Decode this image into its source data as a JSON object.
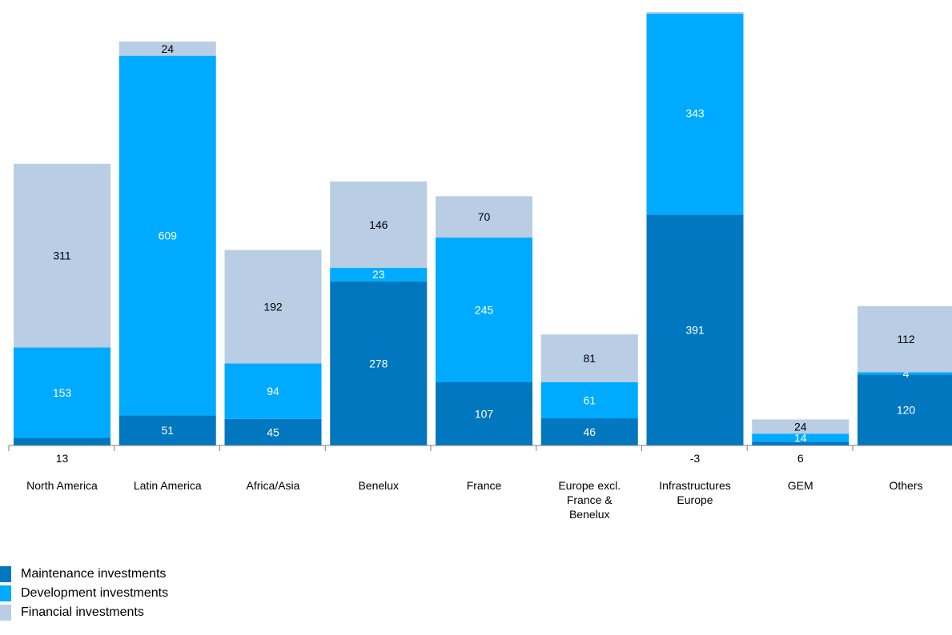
{
  "chart_data": {
    "type": "bar",
    "stacked": true,
    "categories": [
      "North America",
      "Latin America",
      "Africa/Asia",
      "Benelux",
      "France",
      "Europe excl. France & Benelux",
      "Infrastructures Europe",
      "GEM",
      "Others"
    ],
    "category_lines": [
      [
        "North America"
      ],
      [
        "Latin America"
      ],
      [
        "Africa/Asia"
      ],
      [
        "Benelux"
      ],
      [
        "France"
      ],
      [
        "Europe excl.",
        "France &",
        "Benelux"
      ],
      [
        "Infrastructures",
        "Europe"
      ],
      [
        "GEM"
      ],
      [
        "Others"
      ]
    ],
    "series": [
      {
        "name": "Maintenance investments",
        "color": "#0077bf",
        "label_color": "#ffffff",
        "values": [
          13,
          51,
          45,
          278,
          107,
          46,
          391,
          6,
          120
        ],
        "labels": [
          "13",
          "51",
          "45",
          "278",
          "107",
          "46",
          "391",
          "6",
          "120"
        ]
      },
      {
        "name": "Development investments",
        "color": "#00aaff",
        "label_color": "#ffffff",
        "values": [
          153,
          609,
          94,
          23,
          245,
          61,
          343,
          14,
          4
        ],
        "labels": [
          "153",
          "609",
          "94",
          "23",
          "245",
          "61",
          "343",
          "14",
          "4"
        ]
      },
      {
        "name": "Financial investments",
        "color": "#b9cde5",
        "label_color": "#000000",
        "values": [
          311,
          24,
          192,
          146,
          70,
          81,
          -3,
          24,
          112
        ],
        "labels": [
          "311",
          "24",
          "192",
          "146",
          "70",
          "81",
          "-3",
          "24",
          "112"
        ]
      }
    ],
    "outside_labels": [
      {
        "category_index": 0,
        "series_index": 0
      },
      {
        "category_index": 6,
        "series_index": 2
      },
      {
        "category_index": 7,
        "series_index": 0
      }
    ],
    "ylim": [
      0,
      734
    ],
    "grid": false,
    "legend_position": "bottom-left"
  }
}
